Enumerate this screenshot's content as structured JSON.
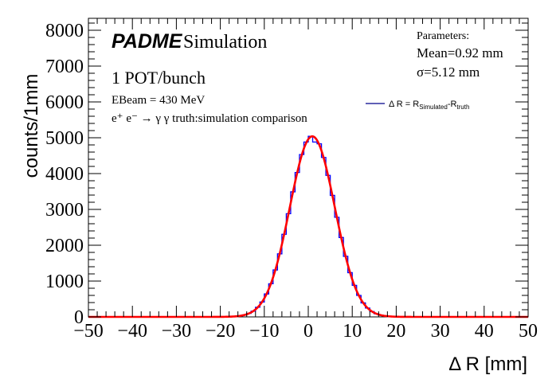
{
  "chart_data": {
    "type": "histogram",
    "title": "",
    "xlabel": "Δ R [mm]",
    "ylabel": "counts/1mm",
    "xlim": [
      -50,
      50
    ],
    "ylim": [
      0,
      8300
    ],
    "x_ticks": [
      -50,
      -40,
      -30,
      -20,
      -10,
      0,
      10,
      20,
      30,
      40,
      50
    ],
    "x_tick_labels": [
      "−50",
      "−40",
      "−30",
      "−20",
      "−10",
      "0",
      "10",
      "20",
      "30",
      "40",
      "50"
    ],
    "y_ticks": [
      0,
      1000,
      2000,
      3000,
      4000,
      5000,
      6000,
      7000,
      8000
    ],
    "y_tick_labels": [
      "0",
      "1000",
      "2000",
      "3000",
      "4000",
      "5000",
      "6000",
      "7000",
      "8000"
    ],
    "grid": false,
    "bin_width": 1,
    "bin_start": -18,
    "bins": [
      8,
      15,
      30,
      55,
      98,
      160,
      270,
      415,
      640,
      925,
      1310,
      1760,
      2305,
      2880,
      3490,
      4030,
      4530,
      4880,
      5040,
      4880,
      4830,
      4450,
      3950,
      3390,
      2780,
      2215,
      1690,
      1235,
      880,
      600,
      390,
      248,
      150,
      88,
      50,
      27,
      14,
      7
    ],
    "series": [
      {
        "name": "Δ R = R_Simulated - R_truth",
        "kind": "histogram",
        "color": "#0000ff"
      },
      {
        "name": "Gaussian fit",
        "kind": "line",
        "color": "#ff0000",
        "amplitude": 5040,
        "mean": 0.92,
        "sigma": 5.12
      }
    ],
    "legend": {
      "position": "top-right",
      "entry_prefix": "Δ R = R",
      "entry_sub1": "Simulated",
      "entry_mid": "-R",
      "entry_sub2": "truth",
      "line_color": "#00008b"
    },
    "annotations": {
      "experiment": "PADME",
      "experiment_suffix": "Simulation",
      "pot": "1 POT/bunch",
      "ebeam": "EBeam = 430 MeV",
      "process": "e⁺ e⁻ → γ γ truth:simulation comparison",
      "params_title": "Parameters:",
      "params_mean": "Mean=0.92 mm",
      "params_sigma": "σ=5.12 mm"
    }
  }
}
